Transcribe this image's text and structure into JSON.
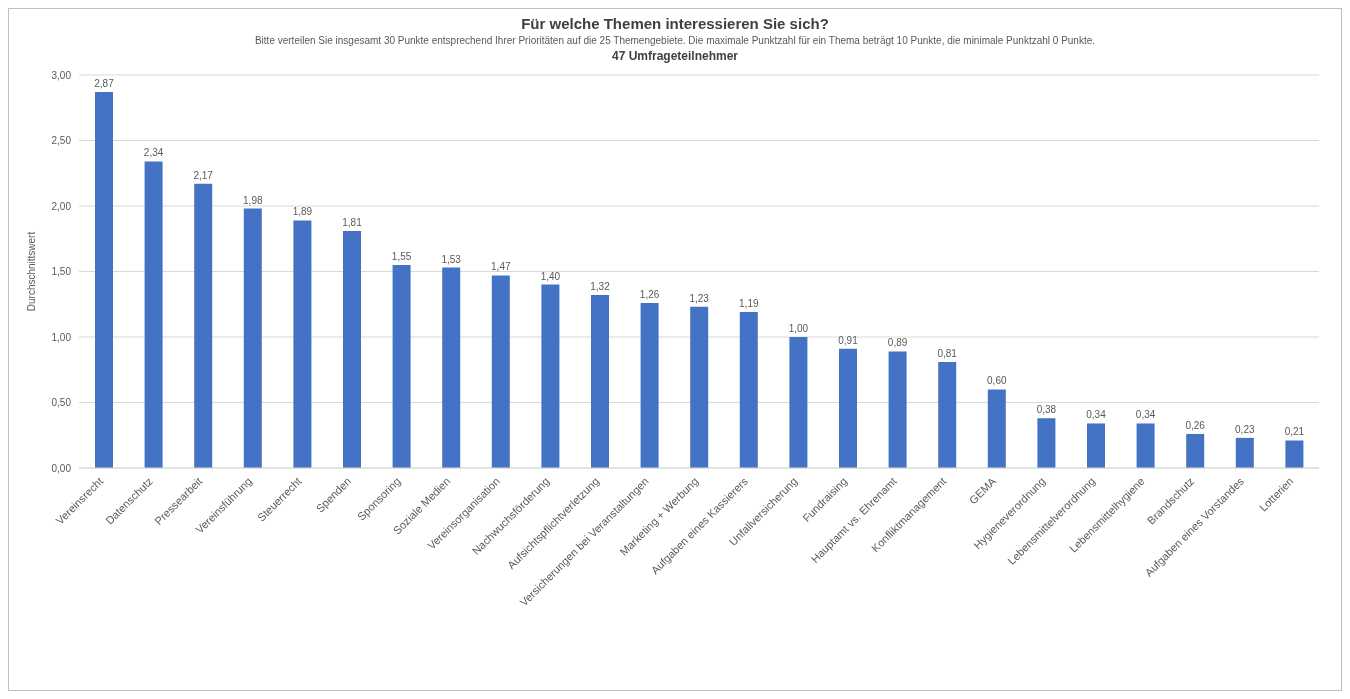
{
  "chart_data": {
    "type": "bar",
    "title": "Für welche Themen interessieren Sie sich?",
    "subtitle": "Bitte verteilen Sie insgesamt 30 Punkte entsprechend Ihrer Prioritäten auf die 25 Themengebiete. Die maximale Punktzahl für ein Thema beträgt 10 Punkte, die minimale Punktzahl 0 Punkte.",
    "annotations": [
      "47 Umfrageteilnehmer"
    ],
    "ylabel": "Durchschnittswert",
    "categories": [
      "Vereinsrecht",
      "Datenschutz",
      "Pressearbeit",
      "Vereinsführung",
      "Steuerrecht",
      "Spenden",
      "Sponsoring",
      "Soziale Medien",
      "Vereinsorganisation",
      "Nachwuchsförderung",
      "Aufsichtspflichtverletzung",
      "Versicherungen bei Veranstaltungen",
      "Marketing + Werbung",
      "Aufgaben eines Kassierers",
      "Unfallversicherung",
      "Fundraising",
      "Hauptamt vs. Ehrenamt",
      "Konfliktmanagement",
      "GEMA",
      "Hygieneverordnung",
      "Lebensmittelverordnung",
      "Lebensmittelhygiene",
      "Brandschutz",
      "Aufgaben eines Vorstandes",
      "Lotterien"
    ],
    "values": [
      2.87,
      2.34,
      2.17,
      1.98,
      1.89,
      1.81,
      1.55,
      1.53,
      1.47,
      1.4,
      1.32,
      1.26,
      1.23,
      1.19,
      1.0,
      0.91,
      0.89,
      0.81,
      0.6,
      0.38,
      0.34,
      0.34,
      0.26,
      0.23,
      0.21
    ],
    "value_labels": [
      "2,87",
      "2,34",
      "2,17",
      "1,98",
      "1,89",
      "1,81",
      "1,55",
      "1,53",
      "1,47",
      "1,40",
      "1,32",
      "1,26",
      "1,23",
      "1,19",
      "1,00",
      "0,91",
      "0,89",
      "0,81",
      "0,60",
      "0,38",
      "0,34",
      "0,34",
      "0,26",
      "0,23",
      "0,21"
    ],
    "color": "#4472c4",
    "ylim": [
      0,
      3
    ],
    "yticks": [
      {
        "value": 0,
        "label": "0,00"
      },
      {
        "value": 0.5,
        "label": "0,50"
      },
      {
        "value": 1,
        "label": "1,00"
      },
      {
        "value": 1.5,
        "label": "1,50"
      },
      {
        "value": 2,
        "label": "2,00"
      },
      {
        "value": 2.5,
        "label": "2,50"
      },
      {
        "value": 3,
        "label": "3,00"
      }
    ],
    "grid": "y"
  }
}
